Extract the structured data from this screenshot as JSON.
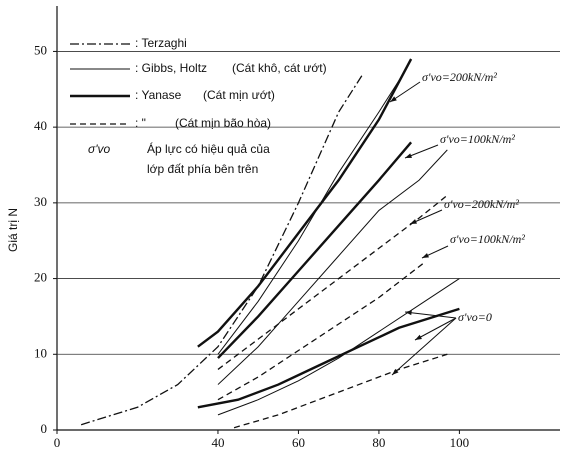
{
  "chart_data": {
    "type": "line",
    "y_label": "Giá trị N",
    "xlim": [
      0,
      125
    ],
    "ylim": [
      0,
      56
    ],
    "xticks": [
      0,
      40,
      60,
      80,
      100
    ],
    "yticks": [
      0,
      10,
      20,
      30,
      40,
      50
    ],
    "grid": "y",
    "legend": [
      {
        "style": "dashdot",
        "texts": [
          ": Terzaghi"
        ]
      },
      {
        "style": "thin",
        "texts": [
          ": Gibbs, Holtz",
          "(Cát khô, cát ướt)"
        ]
      },
      {
        "style": "thick",
        "texts": [
          ": Yanase",
          "(Cát mịn ướt)"
        ]
      },
      {
        "style": "dashed",
        "texts": [
          ": \"",
          "(Cát mịn bão hòa)"
        ]
      },
      {
        "style": "symbol",
        "texts": [
          "σ'vo",
          "Áp lực có hiệu quả của",
          "lớp đất phía bên trên"
        ]
      }
    ],
    "annotations": [
      "σ'vo=200kN/m²",
      "σ'vo=100kN/m²",
      "σ'vo=200kN/m²",
      "σ'vo=100kN/m²",
      "σ'vo=0"
    ],
    "series": [
      {
        "style": "dashdot",
        "color": "#111",
        "x": [
          6,
          20,
          30,
          40,
          50,
          60,
          70,
          76
        ],
        "values": [
          0.7,
          3,
          6,
          11,
          19,
          30,
          42,
          47
        ]
      },
      {
        "style": "thin",
        "color": "#111",
        "x": [
          40,
          50,
          60,
          70,
          80,
          86
        ],
        "values": [
          10,
          17,
          25,
          34,
          42,
          47
        ]
      },
      {
        "style": "thin",
        "color": "#111",
        "x": [
          40,
          50,
          60,
          70,
          80,
          90,
          97
        ],
        "values": [
          6,
          11,
          17,
          23,
          29,
          33,
          37
        ]
      },
      {
        "style": "thin",
        "color": "#111",
        "x": [
          40,
          50,
          60,
          70,
          80,
          90,
          100
        ],
        "values": [
          2,
          4,
          6.5,
          9.5,
          13,
          16.5,
          20
        ]
      },
      {
        "style": "thick",
        "color": "#111",
        "x": [
          35,
          40,
          50,
          60,
          70,
          80,
          88
        ],
        "values": [
          11,
          13,
          19,
          26,
          33,
          41,
          49
        ]
      },
      {
        "style": "thick",
        "color": "#111",
        "x": [
          40,
          50,
          60,
          70,
          80,
          88
        ],
        "values": [
          9.5,
          15,
          21,
          27,
          33,
          38
        ]
      },
      {
        "style": "thick",
        "color": "#111",
        "x": [
          35,
          45,
          55,
          65,
          75,
          85,
          100
        ],
        "values": [
          3,
          4,
          6,
          8.5,
          11,
          13.5,
          16
        ]
      },
      {
        "style": "dashed",
        "color": "#111",
        "x": [
          40,
          50,
          60,
          70,
          80,
          90,
          97
        ],
        "values": [
          8,
          12,
          16,
          20,
          24,
          28,
          31
        ]
      },
      {
        "style": "dashed",
        "color": "#111",
        "x": [
          40,
          50,
          60,
          70,
          80,
          91
        ],
        "values": [
          4,
          7,
          10.5,
          14,
          17.5,
          22
        ]
      },
      {
        "style": "dashed",
        "color": "#111",
        "x": [
          44,
          55,
          65,
          75,
          85,
          97
        ],
        "values": [
          0.3,
          2,
          4,
          6,
          8,
          10
        ]
      }
    ]
  }
}
